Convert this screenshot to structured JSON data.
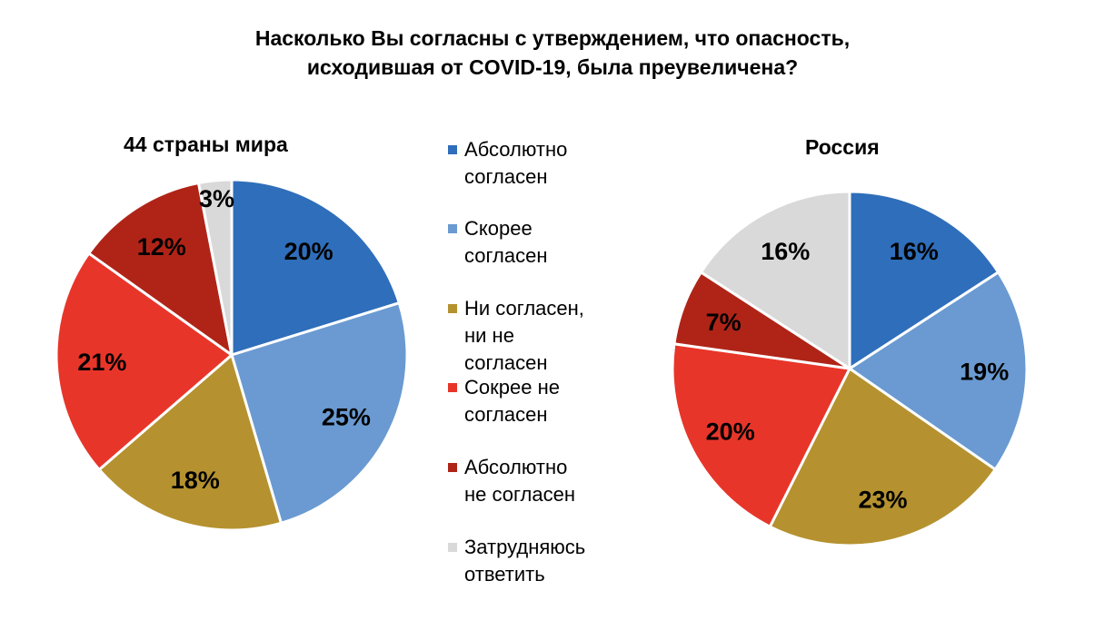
{
  "chart_data": {
    "type": "pie",
    "title_line1": "Насколько Вы согласны с утверждением, что опасность,",
    "title_line2": "исходившая от COVID-19, была преувеличена?",
    "legend": [
      {
        "label_line1": "Абсолютно",
        "label_line2": "согласен",
        "label_line3": "",
        "color": "#2F6EBA"
      },
      {
        "label_line1": "Скорее",
        "label_line2": "согласен",
        "label_line3": "",
        "color": "#6A9AD1"
      },
      {
        "label_line1": "Ни согласен,",
        "label_line2": "ни не",
        "label_line3": "согласен",
        "color": "#B5922F"
      },
      {
        "label_line1": "Сокрее не",
        "label_line2": "согласен",
        "label_line3": "",
        "color": "#E8352A"
      },
      {
        "label_line1": "Абсолютно",
        "label_line2": "не согласен",
        "label_line3": "",
        "color": "#B02418"
      },
      {
        "label_line1": "Затрудняюсь",
        "label_line2": "ответить",
        "label_line3": "",
        "color": "#D9D9D9"
      }
    ],
    "pies": [
      {
        "title": "44 страны мира",
        "values": [
          20,
          25,
          18,
          21,
          12,
          3
        ],
        "labels": [
          "20%",
          "25%",
          "18%",
          "21%",
          "12%",
          "3%"
        ]
      },
      {
        "title": "Россия",
        "values": [
          16,
          19,
          23,
          20,
          7,
          16
        ],
        "labels": [
          "16%",
          "19%",
          "23%",
          "20%",
          "7%",
          "16%"
        ]
      }
    ]
  }
}
